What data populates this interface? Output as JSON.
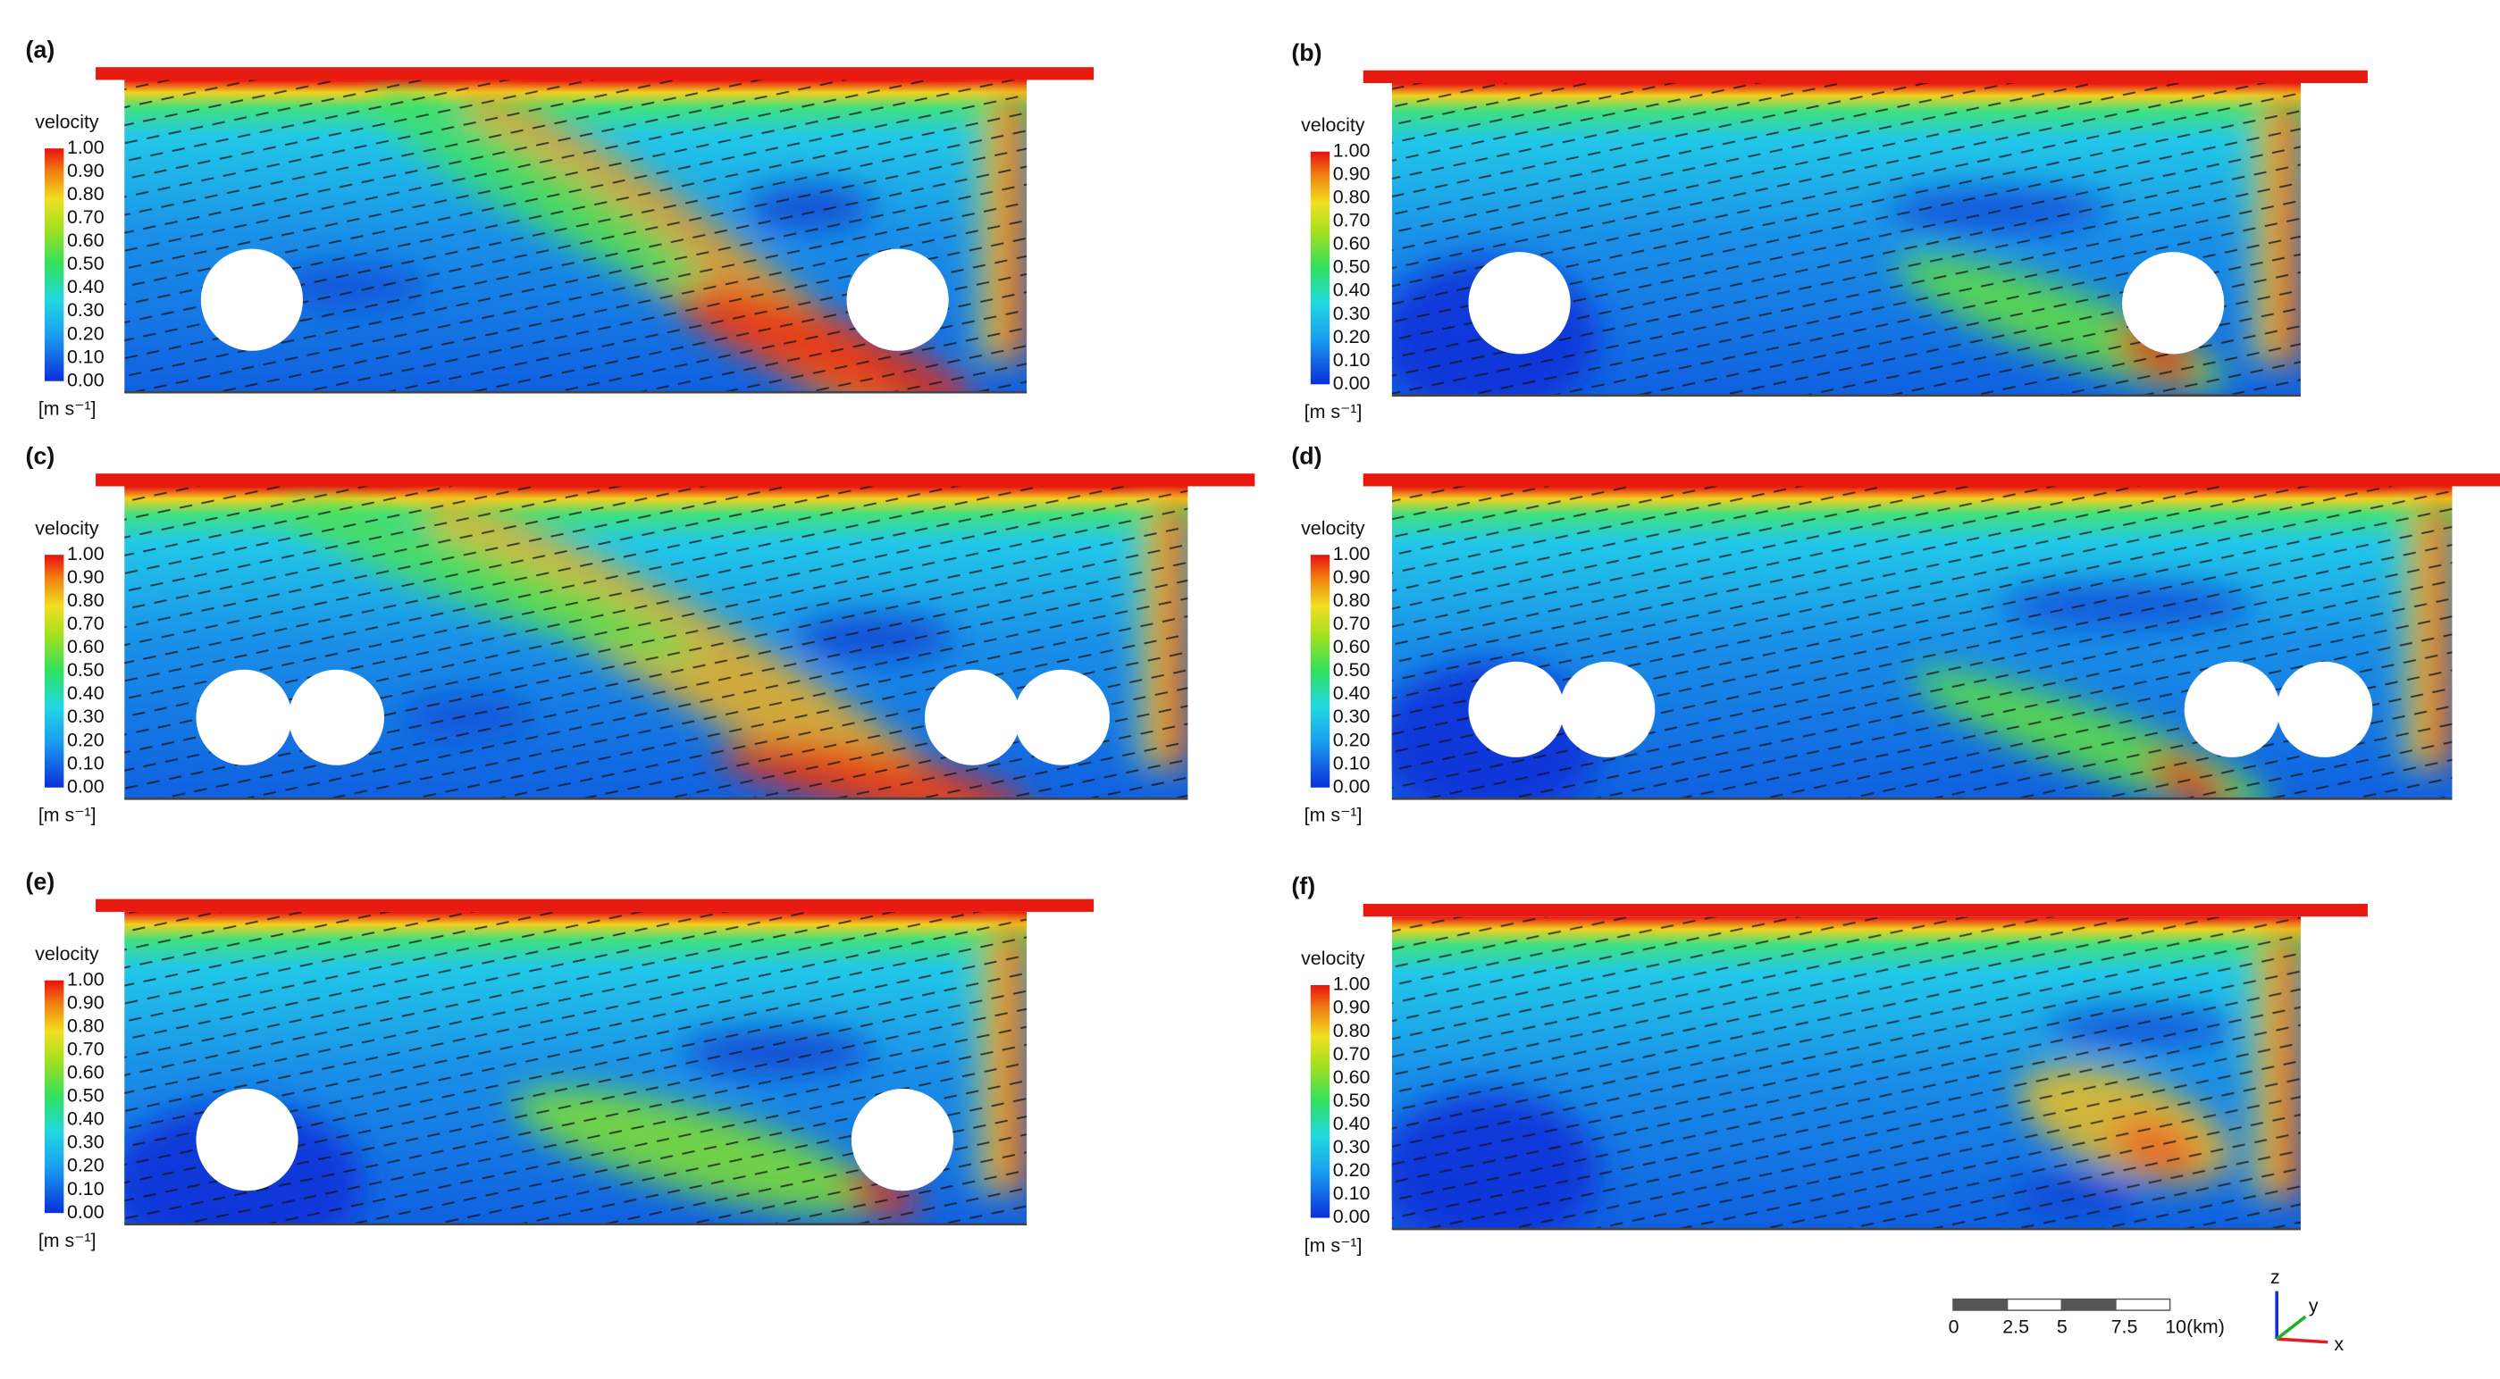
{
  "panels": [
    {
      "label": "(a)"
    },
    {
      "label": "(b)"
    },
    {
      "label": "(c)"
    },
    {
      "label": "(d)"
    },
    {
      "label": "(e)"
    },
    {
      "label": "(f)"
    }
  ],
  "colorbar": {
    "title": "velocity",
    "unit": "[m s⁻¹]",
    "ticks": [
      "1.00",
      "0.90",
      "0.80",
      "0.70",
      "0.60",
      "0.50",
      "0.40",
      "0.30",
      "0.20",
      "0.10",
      "0.00"
    ]
  },
  "scale_bar": {
    "labels": [
      "0",
      "2.5",
      "5",
      "7.5",
      "10(km)"
    ]
  },
  "axes_triad": {
    "labels": [
      "z",
      "y",
      "x"
    ]
  }
}
